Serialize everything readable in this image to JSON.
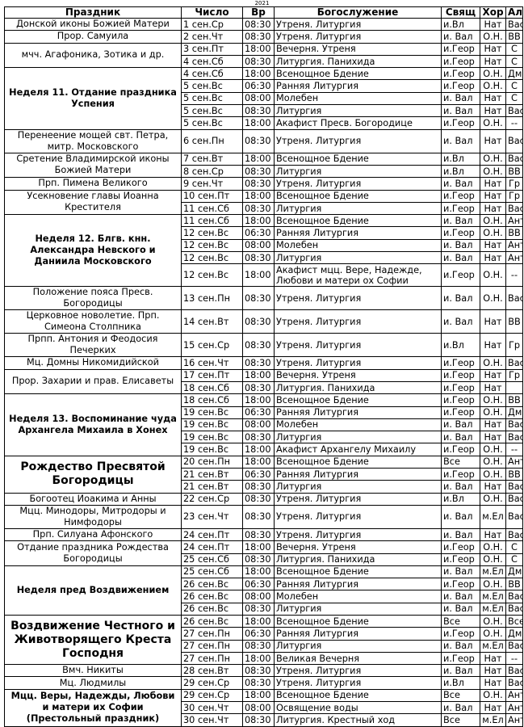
{
  "year": "2021",
  "headers": [
    "Праздник",
    "Число",
    "Вр",
    "Богослужение",
    "Свящ",
    "Хор",
    "Ал"
  ],
  "groups": [
    {
      "name": "Донской иконы Божией Матери",
      "style": "",
      "rows": [
        [
          "1 сен.Ср",
          "08:30",
          "Утреня. Литургия",
          "и.Вл",
          "Нат",
          "Вас"
        ]
      ]
    },
    {
      "name": "Прор. Самуила",
      "style": "",
      "rows": [
        [
          "2 сен.Чт",
          "08:30",
          "Утреня. Литургия",
          "и. Вал",
          "О.Н.",
          "ВВ"
        ]
      ]
    },
    {
      "name": "мчч. Агафоника, Зотика и др.",
      "style": "",
      "rows": [
        [
          "3 сен.Пт",
          "18:00",
          "Вечерня. Утреня",
          "и.Геор",
          "Нат",
          "С"
        ],
        [
          "4 сен.Сб",
          "08:30",
          "Литургия. Панихида",
          "и.Геор",
          "Нат",
          "С"
        ]
      ]
    },
    {
      "name": "Неделя 11. Отдание праздника Успения",
      "style": "bold",
      "rows": [
        [
          "4 сен.Сб",
          "18:00",
          "Всенощное Бдение",
          "и.Геор",
          "О.Н.",
          "Дм"
        ],
        [
          "5 сен.Вс",
          "06:30",
          "Ранняя Литургия",
          "и.Геор",
          "О.Н.",
          "С"
        ],
        [
          "5 сен.Вс",
          "08:00",
          "Молебен",
          "и. Вал",
          "Нат",
          "С"
        ],
        [
          "5 сен.Вс",
          "08:30",
          "Литургия",
          "и. Вал",
          "Нат",
          "Вас"
        ],
        [
          "5 сен.Вс",
          "18:00",
          "Акафист Пресв. Богородице",
          "и.Геор",
          "О.Н.",
          "--"
        ]
      ]
    },
    {
      "name": "Перенеение мощей свт. Петра, митр. Московского",
      "style": "",
      "tall": true,
      "rows": [
        [
          "6 сен.Пн",
          "08:30",
          "Утреня. Литургия",
          "и. Вал",
          "Нат",
          "Вас"
        ]
      ]
    },
    {
      "name": "Сретение Владимирской иконы Божией Матери",
      "style": "",
      "rows": [
        [
          "7 сен.Вт",
          "18:00",
          "Всенощное Бдение",
          "и.Вл",
          "О.Н.",
          "Вас"
        ],
        [
          "8 сен.Ср",
          "08:30",
          "Литургия",
          "и.Вл",
          "О.Н.",
          "ВВ"
        ]
      ]
    },
    {
      "name": "Прп. Пимена Великого",
      "style": "",
      "rows": [
        [
          "9 сен.Чт",
          "08:30",
          "Утреня. Литургия",
          "и. Вал",
          "Нат",
          "Гр"
        ]
      ]
    },
    {
      "name": "Усекновение главы Иоанна Крестителя",
      "style": "",
      "rows": [
        [
          "10 сен.Пт",
          "18:00",
          "Всенощное Бдение",
          "и.Геор",
          "Нат",
          "Гр"
        ],
        [
          "11 сен.Сб",
          "08:30",
          "Литургия",
          "и.Геор",
          "Нат",
          "Вас"
        ]
      ]
    },
    {
      "name": "Неделя 12. Блгв. кнн. Александра Невского и Даниила Московского",
      "style": "bold",
      "lasttall": true,
      "rows": [
        [
          "11 сен.Сб",
          "18:00",
          "Всенощное Бдение",
          "и. Вал",
          "О.Н.",
          "Ант"
        ],
        [
          "12 сен.Вс",
          "06:30",
          "Ранняя Литургия",
          "и.Геор",
          "О.Н.",
          "ВВ"
        ],
        [
          "12 сен.Вс",
          "08:00",
          "Молебен",
          "и. Вал",
          "Нат",
          "Ант"
        ],
        [
          "12 сен.Вс",
          "08:30",
          "Литургия",
          "и. Вал",
          "Нат",
          "Ант"
        ],
        [
          "12 сен.Вс",
          "18:00",
          "Акафист мцц. Вере, Надежде, Любови и матери ох Софии",
          "и.Геор",
          "О.Н.",
          "--"
        ]
      ]
    },
    {
      "name": "Положение пояса Пресв. Богородицы",
      "style": "",
      "tall": true,
      "rows": [
        [
          "13 сен.Пн",
          "08:30",
          "Утреня. Литургия",
          "и. Вал",
          "О.Н.",
          "Вас"
        ]
      ]
    },
    {
      "name": "Церковное новолетие. Прп. Симеона Столпника",
      "style": "",
      "tall": true,
      "rows": [
        [
          "14 сен.Вт",
          "08:30",
          "Утреня. Литургия",
          "и. Вал",
          "Нат",
          "ВВ"
        ]
      ]
    },
    {
      "name": "Прпп. Антония и Феодосия Печерких",
      "style": "",
      "tall": true,
      "rows": [
        [
          "15 сен.Ср",
          "08:30",
          "Утреня. Литургия",
          "и.Вл",
          "Нат",
          "Гр"
        ]
      ]
    },
    {
      "name": "Мц. Домны Никомидийской",
      "style": "",
      "rows": [
        [
          "16 сен.Чт",
          "08:30",
          "Утреня. Литургия",
          "и.Геор",
          "О.Н.",
          "Вас"
        ]
      ]
    },
    {
      "name": "Прор. Захарии и прав. Елисаветы",
      "style": "",
      "rows": [
        [
          "17 сен.Пт",
          "18:00",
          "Вечерня. Утреня",
          "и.Геор",
          "Нат",
          "Гр"
        ],
        [
          "18 сен.Сб",
          "08:30",
          "Литургия. Панихида",
          "и.Геор",
          "Нат",
          ""
        ]
      ]
    },
    {
      "name": "Неделя 13. Воспоминание чуда Архангела Михаила в Хонех",
      "style": "bold",
      "rows": [
        [
          "18 сен.Сб",
          "18:00",
          "Всенощное Бдение",
          "и.Геор",
          "О.Н.",
          "ВВ"
        ],
        [
          "19 сен.Вс",
          "06:30",
          "Ранняя Литургия",
          "и.Геор",
          "О.Н.",
          "Дм"
        ],
        [
          "19 сен.Вс",
          "08:00",
          "Молебен",
          "и. Вал",
          "Нат",
          "Вас"
        ],
        [
          "19 сен.Вс",
          "08:30",
          "Литургия",
          "и. Вал",
          "Нат",
          "Вас"
        ],
        [
          "19 сен.Вс",
          "18:00",
          "Акафист Архангелу Михаилу",
          "и.Геор",
          "О.Н.",
          "--"
        ]
      ]
    },
    {
      "name": "Рождество Пресвятой Богородицы",
      "style": "big",
      "rows": [
        [
          "20 сен.Пн",
          "18:00",
          "Всенощное Бдение",
          "Все",
          "О.Н.",
          "Ант"
        ],
        [
          "21 сен.Вт",
          "06:30",
          "Ранняя Литургия",
          "и.Геор",
          "О.Н.",
          "ВВ"
        ],
        [
          "21 сен.Вт",
          "08:30",
          "Литургия",
          "и. Вал",
          "Нат",
          "Вас"
        ]
      ]
    },
    {
      "name": "Богоотец Иоакима и Анны",
      "style": "",
      "rows": [
        [
          "22 сен.Ср",
          "08:30",
          "Утреня. Литургия",
          "и.Вл",
          "О.Н.",
          "Вас"
        ]
      ]
    },
    {
      "name": "Мцц. Минодоры, Митродоры и Нимфодоры",
      "style": "",
      "tall": true,
      "rows": [
        [
          "23 сен.Чт",
          "08:30",
          "Утреня. Литургия",
          "и. Вал",
          "м.Ел",
          "Вас"
        ]
      ]
    },
    {
      "name": "Прп. Силуана Афонского",
      "style": "",
      "rows": [
        [
          "24 сен.Пт",
          "08:30",
          "Утреня. Литургия",
          "и. Вал",
          "Нат",
          "Вас"
        ]
      ]
    },
    {
      "name": "Отдание  праздника Рождества Богородицы",
      "style": "",
      "rows": [
        [
          "24 сен.Пт",
          "18:00",
          "Вечерня. Утреня",
          "и.Геор",
          "О.Н.",
          "С"
        ],
        [
          "25 сен.Сб",
          "08:30",
          "Литургия. Панихида",
          "и.Геор",
          "О.Н.",
          "С"
        ]
      ]
    },
    {
      "name": "Неделя пред Воздвижением",
      "style": "bold",
      "rows": [
        [
          "25 сен.Сб",
          "18:00",
          "Всенощное Бдение",
          "и. Вал",
          "м.Ел",
          "Дм"
        ],
        [
          "26 сен.Вс",
          "06:30",
          "Ранняя Литургия",
          "и.Геор",
          "О.Н.",
          "ВВ"
        ],
        [
          "26 сен.Вс",
          "08:00",
          "Молебен",
          "и. Вал",
          "м.Ел",
          "Вас"
        ],
        [
          "26 сен.Вс",
          "08:30",
          "Литургия",
          "и. Вал",
          "м.Ел",
          "Вас"
        ]
      ]
    },
    {
      "name": "Воздвижение Честного и Животворящего Креста Господня",
      "style": "big",
      "rows": [
        [
          "26 сен.Вс",
          "18:00",
          "Всенощное Бдение",
          "Все",
          "О.Н.",
          "Все"
        ],
        [
          "27 сен.Пн",
          "06:30",
          "Ранняя Литургия",
          "и.Геор",
          "О.Н.",
          "Дм"
        ],
        [
          "27 сен.Пн",
          "08:30",
          "Литургия",
          "и. Вал",
          "м.Ел",
          "Вас"
        ],
        [
          "27 сен.Пн",
          "18:00",
          "Великая Вечерня",
          "и.Геор",
          "Нат",
          "--"
        ]
      ]
    },
    {
      "name": "Вмч. Никиты",
      "style": "",
      "rows": [
        [
          "28 сен.Вт",
          "08:30",
          "Утреня. Литургия",
          "и. Вал",
          "Нат",
          "Вас"
        ]
      ]
    },
    {
      "name": "Мц. Людмилы",
      "style": "",
      "rows": [
        [
          "29 сен.Ср",
          "08:30",
          "Утреня. Литургия",
          "и.Вл",
          "Нат",
          "Вас"
        ]
      ]
    },
    {
      "name": "Мцц. Веры, Надежды, Любови и матери их Софии (Престольный праздник)",
      "style": "bold",
      "rows": [
        [
          "29 сен.Ср",
          "18:00",
          "Всенощное Бдение",
          "Все",
          "О.Н.",
          "Ант"
        ],
        [
          "30 сен.Чт",
          "08:00",
          "Освящение воды",
          "и. Вал",
          "Нат",
          "Ант"
        ],
        [
          "30 сен.Чт",
          "08:30",
          "Литургия. Крестный ход",
          "Все",
          "м.Ел",
          "Ант"
        ]
      ]
    }
  ]
}
